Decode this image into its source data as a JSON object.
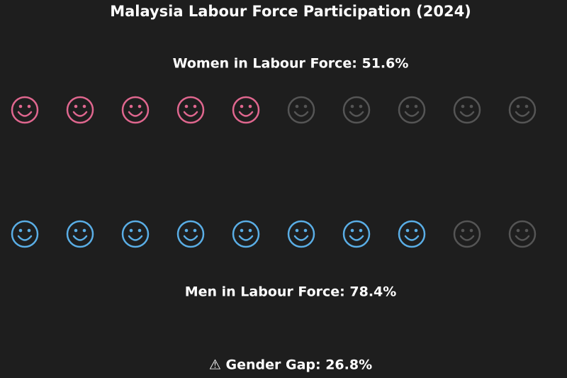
{
  "chart_data": {
    "type": "pictogram",
    "title": "Malaysia Labour Force Participation (2024)",
    "xlim": [
      0,
      100
    ],
    "icons": 10,
    "empty_color": "#555555",
    "series": [
      {
        "value_labels": [
          "Women in Labour Force: 51.6%"
        ],
        "values": [
          51.6
        ],
        "color": "#e0678f"
      },
      {
        "value_labels": [
          "Men in Labour Force: 78.4%"
        ],
        "values": [
          78.4
        ],
        "color": "#5aaee6"
      }
    ],
    "annotation": "⚠ Gender Gap: 26.8%"
  }
}
